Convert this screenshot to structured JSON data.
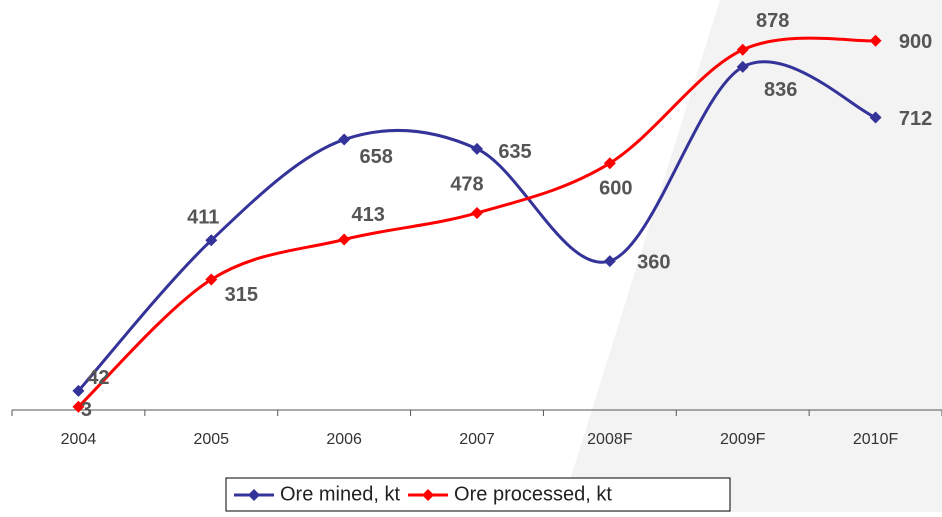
{
  "chart_data": {
    "type": "line",
    "categories": [
      "2004",
      "2005",
      "2006",
      "2007",
      "2008F",
      "2009F",
      "2010F"
    ],
    "series": [
      {
        "name": "Ore mined, kt",
        "color": "#333399",
        "values": [
          42,
          411,
          658,
          635,
          360,
          836,
          712
        ]
      },
      {
        "name": "Ore processed, kt",
        "color": "#ff0000",
        "values": [
          3,
          315,
          413,
          478,
          600,
          878,
          900
        ]
      }
    ],
    "ylim": [
      0,
      1000
    ],
    "smooth": true,
    "data_labels": true,
    "legend": "bottom"
  }
}
